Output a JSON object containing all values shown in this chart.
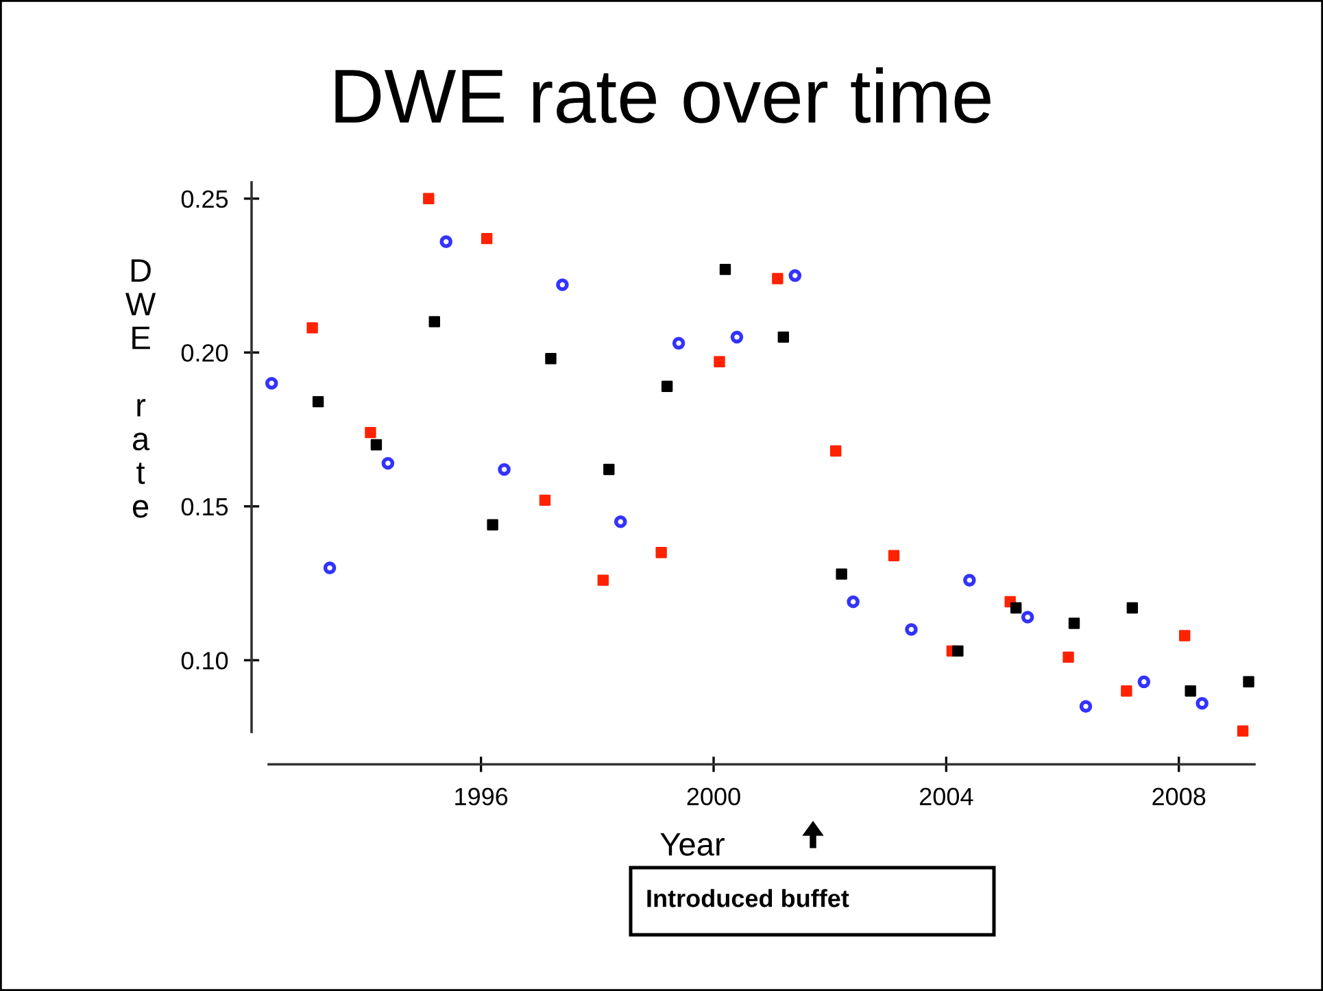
{
  "chart_data": {
    "type": "scatter",
    "title": "DWE rate over time",
    "xlabel": "Year",
    "ylabel": "DWE rate",
    "xlim": [
      1992.35,
      2009.3
    ],
    "xticks": [
      1996,
      2000,
      2004,
      2008
    ],
    "ylim": [
      0.0767,
      0.2553
    ],
    "yticks": [
      {
        "value": 0.1,
        "label": "0.10"
      },
      {
        "value": 0.15,
        "label": "0.15"
      },
      {
        "value": 0.2,
        "label": "0.20"
      },
      {
        "value": 0.25,
        "label": "0.25"
      }
    ],
    "grid": false,
    "legend": false,
    "annotations": [
      "Introduced buffet"
    ],
    "series": [
      {
        "color": "#3333ff",
        "marker": "circle",
        "x": [
          1992.4,
          1993.4,
          1994.4,
          1995.4,
          1996.4,
          1997.4,
          1998.4,
          1999.4,
          2000.4,
          2001.4,
          2002.4,
          2003.4,
          2004.4,
          2005.4,
          2006.4,
          2007.4,
          2008.4
        ],
        "values": [
          0.19,
          0.13,
          0.164,
          0.236,
          0.162,
          0.222,
          0.145,
          0.203,
          0.205,
          0.225,
          0.119,
          0.11,
          0.126,
          0.114,
          0.085,
          0.093,
          0.086
        ]
      },
      {
        "color": "#ff2200",
        "marker": "square",
        "x": [
          1993.1,
          1994.1,
          1995.1,
          1996.1,
          1997.1,
          1998.1,
          1999.1,
          2000.1,
          2001.1,
          2002.1,
          2003.1,
          2004.1,
          2005.1,
          2006.1,
          2007.1,
          2008.1,
          2009.1
        ],
        "values": [
          0.208,
          0.174,
          0.25,
          0.237,
          0.152,
          0.126,
          0.135,
          0.197,
          0.224,
          0.168,
          0.134,
          0.103,
          0.119,
          0.101,
          0.09,
          0.108,
          0.077
        ]
      },
      {
        "color": "#000000",
        "marker": "square",
        "x": [
          1993.2,
          1994.2,
          1995.2,
          1996.2,
          1997.2,
          1998.2,
          1999.2,
          2000.2,
          2001.2,
          2002.2,
          2004.2,
          2005.2,
          2006.2,
          2007.2,
          2008.2,
          2009.2
        ],
        "values": [
          0.184,
          0.17,
          0.21,
          0.144,
          0.198,
          0.162,
          0.189,
          0.227,
          0.205,
          0.128,
          0.103,
          0.117,
          0.112,
          0.117,
          0.09,
          0.093
        ]
      }
    ]
  }
}
